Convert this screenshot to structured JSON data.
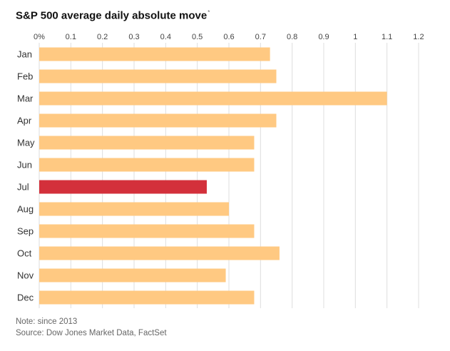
{
  "title": "S&P 500 average daily absolute move",
  "title_marker": "*",
  "note": "Note: since 2013",
  "source": "Source: Dow Jones Market Data, FactSet",
  "colors": {
    "bar_default": "#ffc982",
    "bar_highlight": "#d3303b",
    "grid": "#dedede",
    "axis_text": "#444444",
    "category_text": "#333333"
  },
  "chart_data": {
    "type": "bar",
    "orientation": "horizontal",
    "categories": [
      "Jan",
      "Feb",
      "Mar",
      "Apr",
      "May",
      "Jun",
      "Jul",
      "Aug",
      "Sep",
      "Oct",
      "Nov",
      "Dec"
    ],
    "values": [
      0.73,
      0.75,
      1.1,
      0.75,
      0.68,
      0.68,
      0.53,
      0.6,
      0.68,
      0.76,
      0.59,
      0.68
    ],
    "highlight": "Jul",
    "x_ticks": [
      "0%",
      "0.1",
      "0.2",
      "0.3",
      "0.4",
      "0.5",
      "0.6",
      "0.7",
      "0.8",
      "0.9",
      "1",
      "1.1",
      "1.2"
    ],
    "xlim": [
      0,
      1.2
    ],
    "axis_position": "top",
    "grid": true,
    "legend": "none"
  }
}
